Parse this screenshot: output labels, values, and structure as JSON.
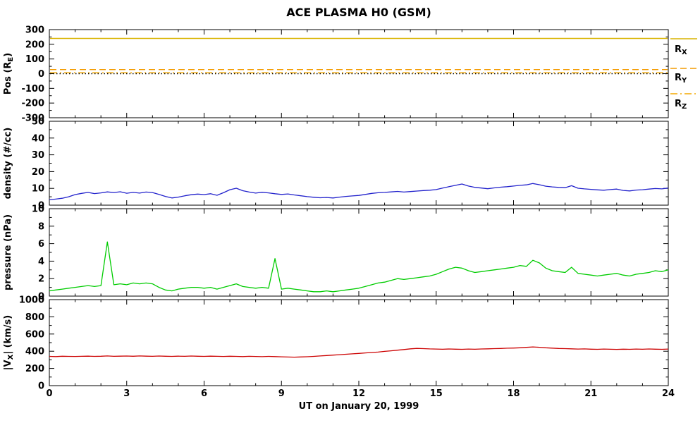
{
  "title": "ACE PLASMA H0 (GSM)",
  "xlabel": "UT on January 20, 1999",
  "xlim": [
    0,
    24
  ],
  "xticks": [
    0,
    3,
    6,
    9,
    12,
    15,
    18,
    21,
    24
  ],
  "x_hours": [
    0,
    0.25,
    0.5,
    0.75,
    1,
    1.25,
    1.5,
    1.75,
    2,
    2.25,
    2.5,
    2.75,
    3,
    3.25,
    3.5,
    3.75,
    4,
    4.25,
    4.5,
    4.75,
    5,
    5.25,
    5.5,
    5.75,
    6,
    6.25,
    6.5,
    6.75,
    7,
    7.25,
    7.5,
    7.75,
    8,
    8.25,
    8.5,
    8.75,
    9,
    9.25,
    9.5,
    9.75,
    10,
    10.25,
    10.5,
    10.75,
    11,
    11.25,
    11.5,
    11.75,
    12,
    12.25,
    12.5,
    12.75,
    13,
    13.25,
    13.5,
    13.75,
    14,
    14.25,
    14.5,
    14.75,
    15,
    15.25,
    15.5,
    15.75,
    16,
    16.25,
    16.5,
    16.75,
    17,
    17.25,
    17.5,
    17.75,
    18,
    18.25,
    18.5,
    18.75,
    19,
    19.25,
    19.5,
    19.75,
    20,
    20.25,
    20.5,
    20.75,
    21,
    21.25,
    21.5,
    21.75,
    22,
    22.25,
    22.5,
    22.75,
    23,
    23.25,
    23.5,
    23.75,
    24
  ],
  "chart_data": [
    {
      "type": "line",
      "name": "position",
      "ylabel_parts": [
        {
          "t": "Pos (R"
        },
        {
          "t": "E",
          "sub": true
        },
        {
          "t": ")"
        }
      ],
      "ylim": [
        -300,
        300
      ],
      "yticks": [
        -300,
        -200,
        -100,
        0,
        100,
        200,
        300
      ],
      "series": [
        {
          "name": "R_X",
          "label_main": "R",
          "label_sub": "X",
          "style": "solid",
          "color": "#D9B400",
          "value": 240
        },
        {
          "name": "R_Y",
          "label_main": "R",
          "label_sub": "Y",
          "style": "dashed",
          "color": "#F49B00",
          "value": 28
        },
        {
          "name": "R_Z",
          "label_main": "R",
          "label_sub": "Z",
          "style": "dashdot",
          "color": "#F4A900",
          "value": 6
        },
        {
          "name": "zero-line",
          "style": "dotted",
          "color": "#000000",
          "value": 0
        }
      ]
    },
    {
      "type": "line",
      "name": "density",
      "ylabel_parts": [
        {
          "t": "density (#/cc)"
        }
      ],
      "ylim": [
        0,
        50
      ],
      "yticks": [
        0,
        10,
        20,
        30,
        40,
        50
      ],
      "color": "#2222CC",
      "values": [
        3.2,
        3.6,
        4.1,
        5.0,
        6.3,
        7.0,
        7.6,
        6.9,
        7.3,
        7.9,
        7.5,
        8.0,
        7.1,
        7.6,
        7.2,
        7.8,
        7.5,
        6.4,
        5.2,
        4.3,
        4.8,
        5.6,
        6.2,
        6.6,
        6.3,
        6.8,
        5.9,
        7.4,
        9.2,
        10.1,
        8.6,
        7.8,
        7.2,
        7.7,
        7.3,
        6.8,
        6.4,
        6.7,
        6.1,
        5.6,
        5.1,
        4.7,
        4.4,
        4.6,
        4.3,
        4.8,
        5.2,
        5.5,
        5.8,
        6.4,
        7.0,
        7.4,
        7.6,
        7.9,
        8.2,
        7.8,
        8.1,
        8.4,
        8.7,
        8.9,
        9.3,
        10.2,
        11.0,
        11.8,
        12.6,
        11.4,
        10.6,
        10.2,
        9.8,
        10.3,
        10.7,
        11.0,
        11.4,
        11.8,
        12.1,
        12.9,
        12.2,
        11.3,
        10.9,
        10.6,
        10.4,
        11.6,
        10.1,
        9.7,
        9.4,
        9.1,
        8.9,
        9.3,
        9.6,
        8.8,
        8.5,
        9.0,
        9.2,
        9.6,
        9.9,
        9.7,
        10.2
      ]
    },
    {
      "type": "line",
      "name": "pressure",
      "ylabel_parts": [
        {
          "t": "pressure (nPa)"
        }
      ],
      "ylim": [
        0,
        10
      ],
      "yticks": [
        0,
        2,
        4,
        6,
        8,
        10
      ],
      "color": "#00CC00",
      "values": [
        0.6,
        0.7,
        0.8,
        0.9,
        1.0,
        1.1,
        1.2,
        1.1,
        1.2,
        6.2,
        1.3,
        1.4,
        1.3,
        1.5,
        1.4,
        1.5,
        1.4,
        1.0,
        0.7,
        0.6,
        0.8,
        0.9,
        1.0,
        1.0,
        0.9,
        1.0,
        0.8,
        1.0,
        1.2,
        1.4,
        1.1,
        1.0,
        0.9,
        1.0,
        0.9,
        4.3,
        0.8,
        0.9,
        0.8,
        0.7,
        0.6,
        0.5,
        0.5,
        0.6,
        0.5,
        0.6,
        0.7,
        0.8,
        0.9,
        1.1,
        1.3,
        1.5,
        1.6,
        1.8,
        2.0,
        1.9,
        2.0,
        2.1,
        2.2,
        2.3,
        2.5,
        2.8,
        3.1,
        3.3,
        3.2,
        2.9,
        2.7,
        2.8,
        2.9,
        3.0,
        3.1,
        3.2,
        3.3,
        3.5,
        3.4,
        4.1,
        3.8,
        3.2,
        2.9,
        2.8,
        2.7,
        3.3,
        2.6,
        2.5,
        2.4,
        2.3,
        2.4,
        2.5,
        2.6,
        2.4,
        2.3,
        2.5,
        2.6,
        2.7,
        2.9,
        2.8,
        3.0
      ]
    },
    {
      "type": "line",
      "name": "speed",
      "ylabel_parts": [
        {
          "t": "|V"
        },
        {
          "t": "X",
          "sub": true
        },
        {
          "t": "| (km/s)"
        }
      ],
      "ylim": [
        0,
        1000
      ],
      "yticks": [
        0,
        200,
        400,
        600,
        800,
        1000
      ],
      "color": "#CC0000",
      "values": [
        340,
        338,
        342,
        340,
        339,
        341,
        343,
        340,
        342,
        345,
        341,
        343,
        344,
        342,
        345,
        343,
        341,
        344,
        342,
        340,
        343,
        341,
        344,
        342,
        340,
        343,
        341,
        339,
        342,
        340,
        338,
        341,
        339,
        337,
        340,
        338,
        335,
        333,
        331,
        334,
        336,
        340,
        345,
        350,
        355,
        360,
        365,
        370,
        375,
        380,
        385,
        390,
        398,
        405,
        412,
        420,
        428,
        433,
        430,
        427,
        425,
        423,
        426,
        424,
        422,
        425,
        423,
        426,
        428,
        430,
        432,
        435,
        437,
        440,
        445,
        450,
        446,
        440,
        436,
        432,
        430,
        428,
        425,
        427,
        424,
        422,
        425,
        423,
        421,
        424,
        422,
        425,
        423,
        426,
        424,
        422,
        425
      ]
    }
  ]
}
